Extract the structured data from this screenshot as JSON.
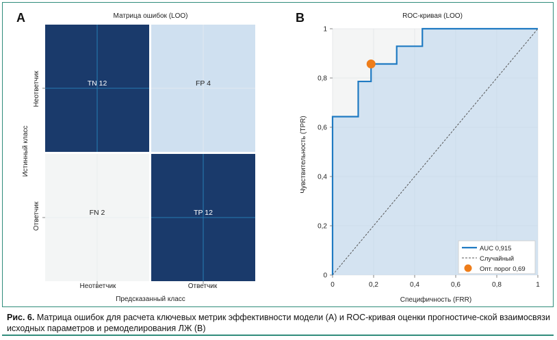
{
  "panel_a_label": "A",
  "panel_b_label": "B",
  "caption": {
    "lead": "Рис. 6.",
    "text": " Матрица ошибок для расчета ключевых метрик эффективности модели (А) и ROC-кривая оценки прогностиче-ской взаимосвязи исходных параметров и ремоделирования ЛЖ (В)"
  },
  "colors": {
    "dark": "#1a3a6b",
    "light": "#cfe0f0",
    "pale": "#f3f5f5",
    "roc": "#1f7ac2",
    "marker": "#ee7d1a",
    "border": "#2e8b7a"
  },
  "chart_data": [
    {
      "type": "heatmap",
      "title": "Матрица ошибок (LOO)",
      "xlabel": "Предсказанный класс",
      "ylabel": "Истинный класс",
      "x_categories": [
        "Неответчик",
        "Ответчик"
      ],
      "y_categories": [
        "Неответчик",
        "Ответчик"
      ],
      "cells": [
        {
          "row": 0,
          "col": 0,
          "label": "TN 12",
          "value": 12
        },
        {
          "row": 0,
          "col": 1,
          "label": "FP 4",
          "value": 4
        },
        {
          "row": 1,
          "col": 0,
          "label": "FN 2",
          "value": 2
        },
        {
          "row": 1,
          "col": 1,
          "label": "TP 12",
          "value": 12
        }
      ]
    },
    {
      "type": "line",
      "title": "ROC-кривая (LOO)",
      "xlabel": "Специфичность (FRR)",
      "ylabel": "Чувствительность (TPR)",
      "xlim": [
        0,
        1
      ],
      "ylim": [
        0,
        1
      ],
      "x_ticks": [
        "0",
        "0,2",
        "0,4",
        "0,6",
        "0,8",
        "1"
      ],
      "y_ticks": [
        "0",
        "0,2",
        "0,4",
        "0,6",
        "0,8",
        "1"
      ],
      "roc_points": [
        [
          0,
          0
        ],
        [
          0,
          0.643
        ],
        [
          0.125,
          0.643
        ],
        [
          0.125,
          0.786
        ],
        [
          0.1875,
          0.786
        ],
        [
          0.1875,
          0.857
        ],
        [
          0.3125,
          0.857
        ],
        [
          0.3125,
          0.929
        ],
        [
          0.4375,
          0.929
        ],
        [
          0.4375,
          1
        ],
        [
          1,
          1
        ]
      ],
      "threshold_point": [
        0.1875,
        0.857
      ],
      "legend": {
        "position": "bottom-right",
        "entries": [
          "AUC 0,915",
          "Случайный",
          "Опт. порог 0,69"
        ]
      }
    }
  ]
}
